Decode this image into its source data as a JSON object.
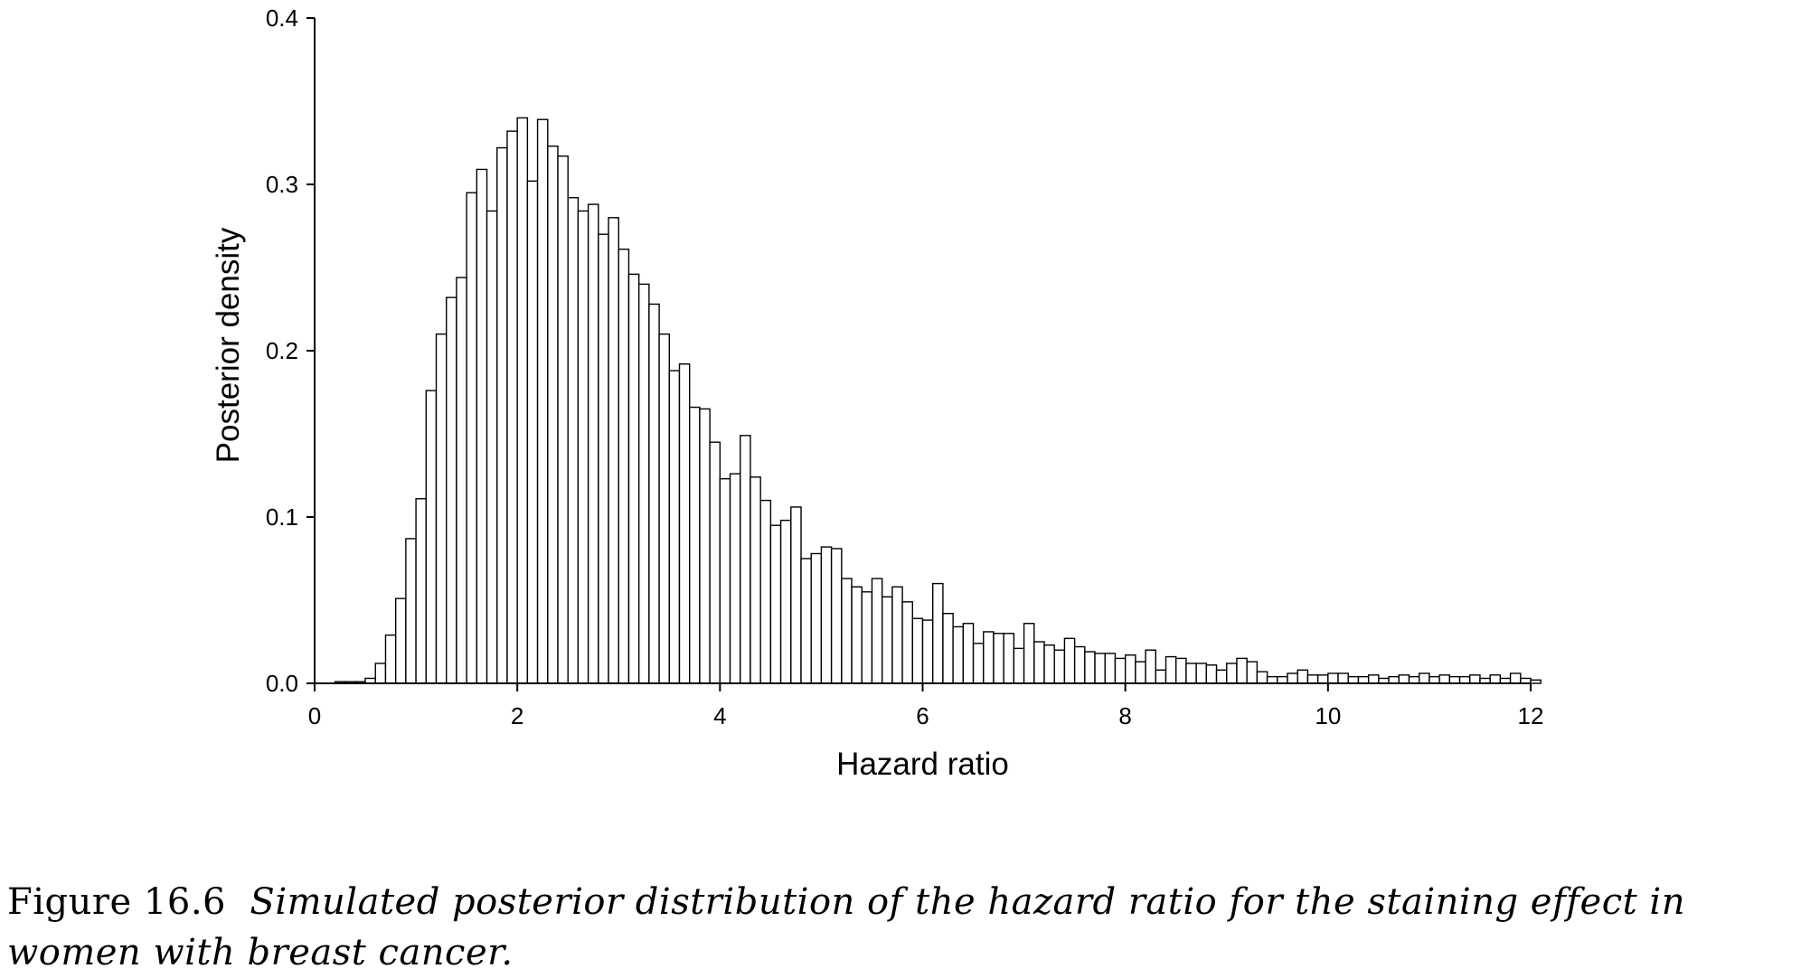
{
  "chart_data": {
    "type": "bar",
    "title": "",
    "xlabel": "Hazard ratio",
    "ylabel": "Posterior density",
    "xlim": [
      0,
      12
    ],
    "ylim": [
      0,
      0.4
    ],
    "bin_width": 0.1,
    "xticks": [
      "0",
      "2",
      "4",
      "6",
      "8",
      "10",
      "12"
    ],
    "yticks": [
      "0.0",
      "0.1",
      "0.2",
      "0.3",
      "0.4"
    ],
    "grid": false,
    "legend": "none",
    "bins": [
      {
        "x": 0.3,
        "y": 0.001
      },
      {
        "x": 0.4,
        "y": 0.001
      },
      {
        "x": 0.5,
        "y": 0.001
      },
      {
        "x": 0.6,
        "y": 0.003
      },
      {
        "x": 0.7,
        "y": 0.012
      },
      {
        "x": 0.8,
        "y": 0.029
      },
      {
        "x": 0.9,
        "y": 0.051
      },
      {
        "x": 1.0,
        "y": 0.087
      },
      {
        "x": 1.1,
        "y": 0.111
      },
      {
        "x": 1.2,
        "y": 0.176
      },
      {
        "x": 1.3,
        "y": 0.21
      },
      {
        "x": 1.4,
        "y": 0.232
      },
      {
        "x": 1.5,
        "y": 0.244
      },
      {
        "x": 1.6,
        "y": 0.295
      },
      {
        "x": 1.7,
        "y": 0.309
      },
      {
        "x": 1.8,
        "y": 0.284
      },
      {
        "x": 1.9,
        "y": 0.322
      },
      {
        "x": 2.0,
        "y": 0.332
      },
      {
        "x": 2.1,
        "y": 0.34
      },
      {
        "x": 2.2,
        "y": 0.302
      },
      {
        "x": 2.3,
        "y": 0.339
      },
      {
        "x": 2.4,
        "y": 0.323
      },
      {
        "x": 2.5,
        "y": 0.317
      },
      {
        "x": 2.6,
        "y": 0.292
      },
      {
        "x": 2.7,
        "y": 0.284
      },
      {
        "x": 2.8,
        "y": 0.288
      },
      {
        "x": 2.9,
        "y": 0.27
      },
      {
        "x": 3.0,
        "y": 0.28
      },
      {
        "x": 3.1,
        "y": 0.261
      },
      {
        "x": 3.2,
        "y": 0.246
      },
      {
        "x": 3.3,
        "y": 0.24
      },
      {
        "x": 3.4,
        "y": 0.228
      },
      {
        "x": 3.5,
        "y": 0.21
      },
      {
        "x": 3.6,
        "y": 0.188
      },
      {
        "x": 3.7,
        "y": 0.192
      },
      {
        "x": 3.8,
        "y": 0.166
      },
      {
        "x": 3.9,
        "y": 0.165
      },
      {
        "x": 4.0,
        "y": 0.145
      },
      {
        "x": 4.1,
        "y": 0.123
      },
      {
        "x": 4.2,
        "y": 0.126
      },
      {
        "x": 4.3,
        "y": 0.149
      },
      {
        "x": 4.4,
        "y": 0.124
      },
      {
        "x": 4.5,
        "y": 0.11
      },
      {
        "x": 4.6,
        "y": 0.095
      },
      {
        "x": 4.7,
        "y": 0.098
      },
      {
        "x": 4.8,
        "y": 0.106
      },
      {
        "x": 4.9,
        "y": 0.075
      },
      {
        "x": 5.0,
        "y": 0.078
      },
      {
        "x": 5.1,
        "y": 0.082
      },
      {
        "x": 5.2,
        "y": 0.081
      },
      {
        "x": 5.3,
        "y": 0.063
      },
      {
        "x": 5.4,
        "y": 0.058
      },
      {
        "x": 5.5,
        "y": 0.055
      },
      {
        "x": 5.6,
        "y": 0.063
      },
      {
        "x": 5.7,
        "y": 0.052
      },
      {
        "x": 5.8,
        "y": 0.058
      },
      {
        "x": 5.9,
        "y": 0.049
      },
      {
        "x": 6.0,
        "y": 0.039
      },
      {
        "x": 6.1,
        "y": 0.038
      },
      {
        "x": 6.2,
        "y": 0.06
      },
      {
        "x": 6.3,
        "y": 0.042
      },
      {
        "x": 6.4,
        "y": 0.034
      },
      {
        "x": 6.5,
        "y": 0.036
      },
      {
        "x": 6.6,
        "y": 0.024
      },
      {
        "x": 6.7,
        "y": 0.031
      },
      {
        "x": 6.8,
        "y": 0.03
      },
      {
        "x": 6.9,
        "y": 0.03
      },
      {
        "x": 7.0,
        "y": 0.021
      },
      {
        "x": 7.1,
        "y": 0.036
      },
      {
        "x": 7.2,
        "y": 0.025
      },
      {
        "x": 7.3,
        "y": 0.023
      },
      {
        "x": 7.4,
        "y": 0.02
      },
      {
        "x": 7.5,
        "y": 0.027
      },
      {
        "x": 7.6,
        "y": 0.022
      },
      {
        "x": 7.7,
        "y": 0.019
      },
      {
        "x": 7.8,
        "y": 0.018
      },
      {
        "x": 7.9,
        "y": 0.018
      },
      {
        "x": 8.0,
        "y": 0.015
      },
      {
        "x": 8.1,
        "y": 0.017
      },
      {
        "x": 8.2,
        "y": 0.013
      },
      {
        "x": 8.3,
        "y": 0.02
      },
      {
        "x": 8.4,
        "y": 0.008
      },
      {
        "x": 8.5,
        "y": 0.016
      },
      {
        "x": 8.6,
        "y": 0.015
      },
      {
        "x": 8.7,
        "y": 0.012
      },
      {
        "x": 8.8,
        "y": 0.012
      },
      {
        "x": 8.9,
        "y": 0.011
      },
      {
        "x": 9.0,
        "y": 0.008
      },
      {
        "x": 9.1,
        "y": 0.012
      },
      {
        "x": 9.2,
        "y": 0.015
      },
      {
        "x": 9.3,
        "y": 0.013
      },
      {
        "x": 9.4,
        "y": 0.007
      },
      {
        "x": 9.5,
        "y": 0.004
      },
      {
        "x": 9.6,
        "y": 0.004
      },
      {
        "x": 9.7,
        "y": 0.006
      },
      {
        "x": 9.8,
        "y": 0.008
      },
      {
        "x": 9.9,
        "y": 0.005
      },
      {
        "x": 10.0,
        "y": 0.005
      },
      {
        "x": 10.1,
        "y": 0.006
      },
      {
        "x": 10.2,
        "y": 0.006
      },
      {
        "x": 10.3,
        "y": 0.004
      },
      {
        "x": 10.4,
        "y": 0.004
      },
      {
        "x": 10.5,
        "y": 0.005
      },
      {
        "x": 10.6,
        "y": 0.003
      },
      {
        "x": 10.7,
        "y": 0.004
      },
      {
        "x": 10.8,
        "y": 0.005
      },
      {
        "x": 10.9,
        "y": 0.004
      },
      {
        "x": 11.0,
        "y": 0.006
      },
      {
        "x": 11.1,
        "y": 0.004
      },
      {
        "x": 11.2,
        "y": 0.005
      },
      {
        "x": 11.3,
        "y": 0.004
      },
      {
        "x": 11.4,
        "y": 0.004
      },
      {
        "x": 11.5,
        "y": 0.005
      },
      {
        "x": 11.6,
        "y": 0.003
      },
      {
        "x": 11.7,
        "y": 0.005
      },
      {
        "x": 11.8,
        "y": 0.003
      },
      {
        "x": 11.9,
        "y": 0.006
      },
      {
        "x": 12.0,
        "y": 0.003
      },
      {
        "x": 12.1,
        "y": 0.002
      }
    ]
  },
  "caption": {
    "label": "Figure 16.6",
    "text": "Simulated posterior distribution of the hazard ratio for the staining effect in women with breast cancer."
  }
}
